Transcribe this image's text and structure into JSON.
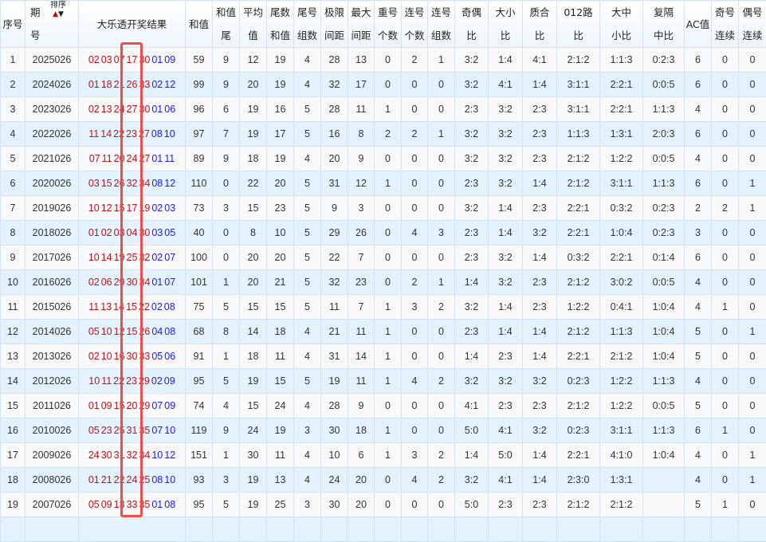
{
  "headers": {
    "seq": "序号",
    "period_top": "期",
    "period_bottom": "号",
    "sort_label": "排序",
    "sort_up_icon": "arrow-up-icon",
    "sort_down_icon": "arrow-down-icon",
    "result": "大乐透开奖结果",
    "sum": "和值",
    "cols": [
      [
        "和值",
        "尾"
      ],
      [
        "平均",
        "值"
      ],
      [
        "尾数",
        "和值"
      ],
      [
        "尾号",
        "组数"
      ],
      [
        "极限",
        "间距"
      ],
      [
        "最大",
        "间距"
      ],
      [
        "重号",
        "个数"
      ],
      [
        "连号",
        "个数"
      ],
      [
        "连号",
        "组数"
      ],
      [
        "奇偶",
        "比"
      ],
      [
        "大小",
        "比"
      ],
      [
        "质合",
        "比"
      ],
      [
        "012路",
        "比"
      ],
      [
        "大中",
        "小比"
      ],
      [
        "复隔",
        "中比"
      ]
    ],
    "ac": "AC值",
    "odd_consec": [
      "奇号",
      "连续"
    ],
    "even_consec": [
      "偶号",
      "连续"
    ]
  },
  "colors": {
    "red_ball": "#c0141c",
    "blue_ball": "#1a1aff",
    "highlight_box": "#f04c4c"
  },
  "rows": [
    {
      "seq": "1",
      "period": "2025026",
      "red": [
        "02",
        "03",
        "07",
        "17",
        "30"
      ],
      "blue": [
        "01",
        "09"
      ],
      "sum": "59",
      "stats": [
        "9",
        "12",
        "19",
        "4",
        "28",
        "13",
        "0",
        "2",
        "1",
        "3:2",
        "1:4",
        "4:1",
        "2:1:2",
        "1:1:3",
        "0:2:3"
      ],
      "ac": "6",
      "odd": "0",
      "even": "0"
    },
    {
      "seq": "2",
      "period": "2024026",
      "red": [
        "01",
        "18",
        "21",
        "26",
        "33"
      ],
      "blue": [
        "02",
        "12"
      ],
      "sum": "99",
      "stats": [
        "9",
        "20",
        "19",
        "4",
        "32",
        "17",
        "0",
        "0",
        "0",
        "3:2",
        "4:1",
        "1:4",
        "3:1:1",
        "2:2:1",
        "0:0:5"
      ],
      "ac": "6",
      "odd": "0",
      "even": "0"
    },
    {
      "seq": "3",
      "period": "2023026",
      "red": [
        "02",
        "13",
        "24",
        "27",
        "30"
      ],
      "blue": [
        "01",
        "06"
      ],
      "sum": "96",
      "stats": [
        "6",
        "19",
        "16",
        "5",
        "28",
        "11",
        "1",
        "0",
        "0",
        "2:3",
        "3:2",
        "2:3",
        "3:1:1",
        "2:2:1",
        "1:1:3"
      ],
      "ac": "4",
      "odd": "0",
      "even": "0"
    },
    {
      "seq": "4",
      "period": "2022026",
      "red": [
        "11",
        "14",
        "22",
        "23",
        "27"
      ],
      "blue": [
        "08",
        "10"
      ],
      "sum": "97",
      "stats": [
        "7",
        "19",
        "17",
        "5",
        "16",
        "8",
        "2",
        "2",
        "1",
        "3:2",
        "3:2",
        "2:3",
        "1:1:3",
        "1:3:1",
        "2:0:3"
      ],
      "ac": "6",
      "odd": "0",
      "even": "0"
    },
    {
      "seq": "5",
      "period": "2021026",
      "red": [
        "07",
        "11",
        "20",
        "24",
        "27"
      ],
      "blue": [
        "01",
        "11"
      ],
      "sum": "89",
      "stats": [
        "9",
        "18",
        "19",
        "4",
        "20",
        "9",
        "0",
        "0",
        "0",
        "3:2",
        "3:2",
        "2:3",
        "2:1:2",
        "1:2:2",
        "0:0:5"
      ],
      "ac": "4",
      "odd": "0",
      "even": "0"
    },
    {
      "seq": "6",
      "period": "2020026",
      "red": [
        "03",
        "15",
        "26",
        "32",
        "34"
      ],
      "blue": [
        "08",
        "12"
      ],
      "sum": "110",
      "stats": [
        "0",
        "22",
        "20",
        "5",
        "31",
        "12",
        "1",
        "0",
        "0",
        "2:3",
        "3:2",
        "1:4",
        "2:1:2",
        "3:1:1",
        "1:1:3"
      ],
      "ac": "6",
      "odd": "0",
      "even": "1"
    },
    {
      "seq": "7",
      "period": "2019026",
      "red": [
        "10",
        "12",
        "15",
        "17",
        "19"
      ],
      "blue": [
        "02",
        "03"
      ],
      "sum": "73",
      "stats": [
        "3",
        "15",
        "23",
        "5",
        "9",
        "3",
        "0",
        "0",
        "0",
        "3:2",
        "1:4",
        "2:3",
        "2:2:1",
        "0:3:2",
        "0:2:3"
      ],
      "ac": "2",
      "odd": "2",
      "even": "1"
    },
    {
      "seq": "8",
      "period": "2018026",
      "red": [
        "01",
        "02",
        "03",
        "04",
        "30"
      ],
      "blue": [
        "03",
        "05"
      ],
      "sum": "40",
      "stats": [
        "0",
        "8",
        "10",
        "5",
        "29",
        "26",
        "0",
        "4",
        "3",
        "2:3",
        "1:4",
        "3:2",
        "2:2:1",
        "1:0:4",
        "0:2:3"
      ],
      "ac": "3",
      "odd": "0",
      "even": "0"
    },
    {
      "seq": "9",
      "period": "2017026",
      "red": [
        "10",
        "14",
        "19",
        "25",
        "32"
      ],
      "blue": [
        "02",
        "07"
      ],
      "sum": "100",
      "stats": [
        "0",
        "20",
        "20",
        "5",
        "22",
        "7",
        "0",
        "0",
        "0",
        "2:3",
        "3:2",
        "1:4",
        "0:3:2",
        "2:2:1",
        "0:1:4"
      ],
      "ac": "6",
      "odd": "0",
      "even": "0"
    },
    {
      "seq": "10",
      "period": "2016026",
      "red": [
        "02",
        "06",
        "29",
        "30",
        "34"
      ],
      "blue": [
        "01",
        "07"
      ],
      "sum": "101",
      "stats": [
        "1",
        "20",
        "21",
        "5",
        "32",
        "23",
        "0",
        "2",
        "1",
        "1:4",
        "3:2",
        "2:3",
        "2:1:2",
        "3:0:2",
        "0:0:5"
      ],
      "ac": "4",
      "odd": "0",
      "even": "0"
    },
    {
      "seq": "11",
      "period": "2015026",
      "red": [
        "11",
        "13",
        "14",
        "15",
        "22"
      ],
      "blue": [
        "02",
        "08"
      ],
      "sum": "75",
      "stats": [
        "5",
        "15",
        "15",
        "5",
        "11",
        "7",
        "1",
        "3",
        "2",
        "3:2",
        "1:4",
        "2:3",
        "1:2:2",
        "0:4:1",
        "1:0:4"
      ],
      "ac": "4",
      "odd": "1",
      "even": "0"
    },
    {
      "seq": "12",
      "period": "2014026",
      "red": [
        "05",
        "10",
        "12",
        "15",
        "26"
      ],
      "blue": [
        "04",
        "08"
      ],
      "sum": "68",
      "stats": [
        "8",
        "14",
        "18",
        "4",
        "21",
        "11",
        "1",
        "0",
        "0",
        "2:3",
        "1:4",
        "1:4",
        "2:1:2",
        "1:1:3",
        "1:0:4"
      ],
      "ac": "5",
      "odd": "0",
      "even": "1"
    },
    {
      "seq": "13",
      "period": "2013026",
      "red": [
        "02",
        "10",
        "16",
        "30",
        "33"
      ],
      "blue": [
        "05",
        "06"
      ],
      "sum": "91",
      "stats": [
        "1",
        "18",
        "11",
        "4",
        "31",
        "14",
        "1",
        "0",
        "0",
        "1:4",
        "2:3",
        "1:4",
        "2:2:1",
        "2:1:2",
        "1:0:4"
      ],
      "ac": "5",
      "odd": "0",
      "even": "0"
    },
    {
      "seq": "14",
      "period": "2012026",
      "red": [
        "10",
        "11",
        "22",
        "23",
        "29"
      ],
      "blue": [
        "02",
        "09"
      ],
      "sum": "95",
      "stats": [
        "5",
        "19",
        "15",
        "5",
        "19",
        "11",
        "1",
        "4",
        "2",
        "3:2",
        "3:2",
        "3:2",
        "0:2:3",
        "1:2:2",
        "1:1:3"
      ],
      "ac": "4",
      "odd": "0",
      "even": "0"
    },
    {
      "seq": "15",
      "period": "2011026",
      "red": [
        "01",
        "09",
        "15",
        "20",
        "29"
      ],
      "blue": [
        "07",
        "09"
      ],
      "sum": "74",
      "stats": [
        "4",
        "15",
        "24",
        "4",
        "28",
        "9",
        "0",
        "0",
        "0",
        "4:1",
        "2:3",
        "2:3",
        "2:1:2",
        "1:2:2",
        "0:0:5"
      ],
      "ac": "5",
      "odd": "0",
      "even": "0"
    },
    {
      "seq": "16",
      "period": "2010026",
      "red": [
        "05",
        "23",
        "25",
        "31",
        "35"
      ],
      "blue": [
        "07",
        "10"
      ],
      "sum": "119",
      "stats": [
        "9",
        "24",
        "19",
        "3",
        "30",
        "18",
        "1",
        "0",
        "0",
        "5:0",
        "4:1",
        "3:2",
        "0:2:3",
        "3:1:1",
        "1:1:3"
      ],
      "ac": "6",
      "odd": "1",
      "even": "0"
    },
    {
      "seq": "17",
      "period": "2009026",
      "red": [
        "24",
        "30",
        "31",
        "32",
        "34"
      ],
      "blue": [
        "10",
        "12"
      ],
      "sum": "151",
      "stats": [
        "1",
        "30",
        "11",
        "4",
        "10",
        "6",
        "1",
        "3",
        "2",
        "1:4",
        "5:0",
        "1:4",
        "2:2:1",
        "4:1:0",
        "1:0:4"
      ],
      "ac": "4",
      "odd": "0",
      "even": "1"
    },
    {
      "seq": "18",
      "period": "2008026",
      "red": [
        "01",
        "21",
        "22",
        "24",
        "25"
      ],
      "blue": [
        "08",
        "10"
      ],
      "sum": "93",
      "stats": [
        "3",
        "19",
        "13",
        "4",
        "24",
        "20",
        "0",
        "4",
        "2",
        "3:2",
        "4:1",
        "1:4",
        "2:3:0",
        "1:3:1",
        ""
      ],
      "ac": "4",
      "odd": "0",
      "even": "1"
    },
    {
      "seq": "19",
      "period": "2007026",
      "red": [
        "05",
        "09",
        "13",
        "33",
        "35"
      ],
      "blue": [
        "01",
        "08"
      ],
      "sum": "95",
      "stats": [
        "5",
        "19",
        "25",
        "3",
        "30",
        "20",
        "0",
        "0",
        "0",
        "5:0",
        "2:3",
        "2:3",
        "2:1:2",
        "2:1:2",
        ""
      ],
      "ac": "5",
      "odd": "1",
      "even": "0"
    }
  ]
}
